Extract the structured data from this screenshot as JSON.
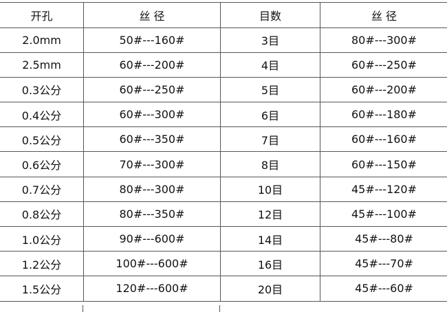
{
  "headers": [
    "开孔",
    "丝 径",
    "目数",
    "丝 径"
  ],
  "rows": [
    [
      "2.0mm",
      "50#---160#",
      "3目",
      "80#---300#"
    ],
    [
      "2.5mm",
      "60#---200#",
      "4目",
      "60#---250#"
    ],
    [
      "0.3公分",
      "60#---250#",
      "5目",
      "60#---200#"
    ],
    [
      "0.4公分",
      "60#---300#",
      "6目",
      "60#---180#"
    ],
    [
      "0.5公分",
      "60#---350#",
      "7目",
      "60#---160#"
    ],
    [
      "0.6公分",
      "70#---300#",
      "8目",
      "60#---150#"
    ],
    [
      "0.7公分",
      "80#---300#",
      "10目",
      "45#---120#"
    ],
    [
      "0.8公分",
      "80#---350#",
      "12目",
      "45#---100#"
    ],
    [
      "1.0公分",
      "90#---600#",
      "14目",
      "45#---80#"
    ],
    [
      "1.2公分",
      "100#---600#",
      "16目",
      "45#---70#"
    ],
    [
      "1.5公分",
      "120#---600#",
      "20目",
      "45#---60#"
    ]
  ]
}
